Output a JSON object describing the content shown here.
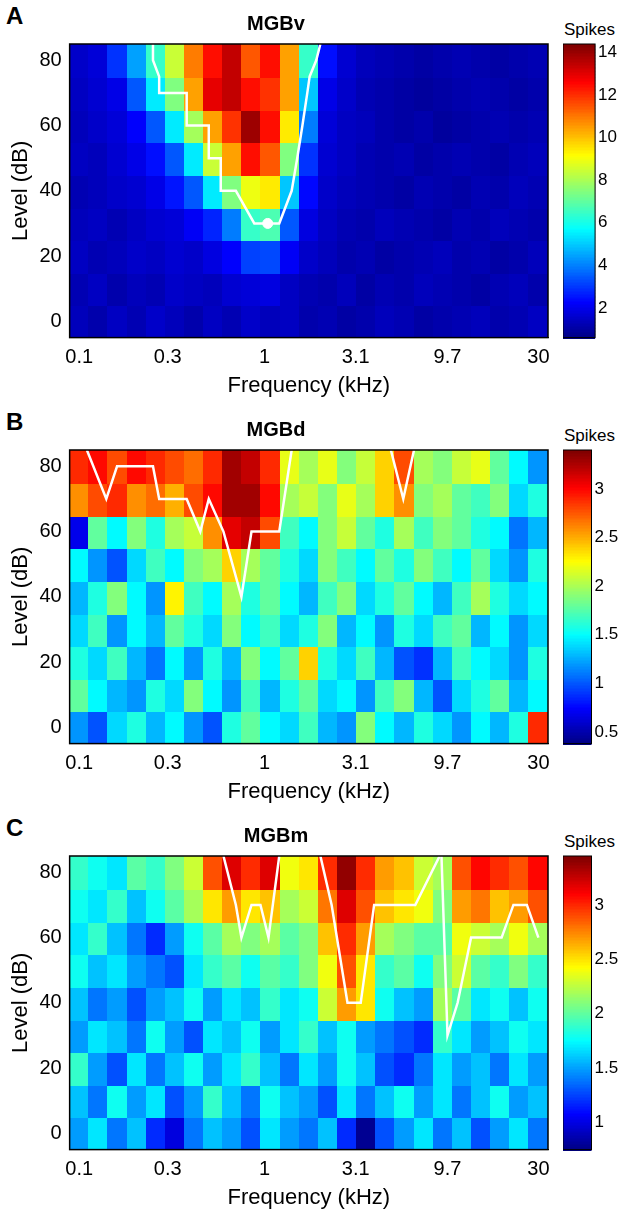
{
  "chart_data": [
    {
      "type": "heatmap",
      "panel": "A",
      "title": "MGBv",
      "x_label": "Frequency (kHz)",
      "y_label": "Level (dB)",
      "log": "x",
      "grid": false,
      "x": [
        0.1,
        0.1268,
        0.1609,
        0.204,
        0.2587,
        0.3282,
        0.4162,
        0.5279,
        0.6695,
        0.8491,
        1.077,
        1.366,
        1.732,
        2.197,
        2.787,
        3.534,
        4.482,
        5.685,
        7.21,
        9.145,
        11.6,
        14.71,
        18.66,
        23.66,
        30
      ],
      "y": [
        0,
        10,
        20,
        30,
        40,
        50,
        60,
        70,
        80
      ],
      "xlim": [
        0.0888,
        33.8
      ],
      "xticks": [
        0.1,
        0.3,
        1,
        3.1,
        9.7,
        30
      ],
      "ylim": [
        -5,
        85
      ],
      "yticks": [
        0,
        20,
        40,
        60,
        80
      ],
      "cells": [
        [
          1.4,
          1.2,
          1.5,
          1.3,
          1.6,
          1.4,
          1.2,
          1.5,
          1.3,
          1.6,
          1.4,
          1.5,
          1.2,
          1.3,
          1.1,
          1.2,
          1.4,
          1.3,
          1.1,
          1.2,
          1.3,
          1.4,
          1.2,
          1.3,
          1.5
        ],
        [
          1.3,
          1.5,
          1.2,
          1.4,
          1.3,
          1.6,
          1.5,
          1.4,
          1.7,
          1.8,
          1.9,
          1.5,
          1.3,
          1.2,
          1.4,
          1.1,
          1.3,
          1.2,
          1.4,
          1.3,
          1.2,
          1.1,
          1.3,
          1.4,
          1.2
        ],
        [
          1.5,
          1.3,
          1.4,
          1.6,
          1.5,
          1.7,
          1.6,
          1.9,
          2.3,
          3.2,
          3.3,
          2.2,
          1.6,
          1.4,
          1.2,
          1.3,
          1.1,
          1.2,
          1.3,
          1.4,
          1.2,
          1.3,
          1.1,
          1.2,
          1.4
        ],
        [
          1.4,
          1.5,
          1.3,
          1.5,
          1.7,
          1.8,
          2.2,
          2.8,
          4.0,
          6.5,
          6.8,
          3.5,
          1.9,
          1.5,
          1.3,
          1.2,
          1.4,
          1.3,
          1.2,
          1.1,
          1.3,
          1.2,
          1.4,
          1.3,
          1.2
        ],
        [
          1.3,
          1.4,
          1.6,
          1.7,
          2.0,
          2.6,
          3.5,
          5.5,
          7.5,
          9.0,
          9.5,
          5.0,
          2.4,
          1.6,
          1.4,
          1.3,
          1.2,
          1.1,
          1.3,
          1.2,
          1.1,
          1.3,
          1.2,
          1.4,
          1.3
        ],
        [
          1.5,
          1.4,
          1.7,
          2.0,
          2.5,
          3.5,
          5.5,
          8.5,
          10.5,
          12.5,
          11.5,
          7.5,
          3.0,
          1.7,
          1.5,
          1.3,
          1.2,
          1.3,
          1.1,
          1.2,
          1.3,
          1.2,
          1.1,
          1.3,
          1.4
        ],
        [
          1.4,
          1.6,
          1.8,
          2.3,
          3.5,
          5.5,
          8.0,
          10.5,
          12.0,
          14.0,
          12.5,
          9.5,
          4.0,
          1.8,
          1.5,
          1.4,
          1.2,
          1.1,
          1.2,
          1.0,
          1.1,
          1.2,
          1.3,
          1.2,
          1.3
        ],
        [
          1.5,
          1.7,
          2.0,
          3.5,
          5.5,
          7.5,
          10.5,
          13.0,
          13.5,
          12.5,
          12.0,
          10.5,
          5.0,
          2.0,
          1.6,
          1.3,
          1.2,
          1.1,
          1.0,
          1.1,
          1.2,
          1.3,
          1.2,
          1.1,
          1.2
        ],
        [
          1.6,
          1.8,
          3.0,
          4.5,
          6.5,
          8.5,
          11.0,
          12.5,
          13.5,
          11.5,
          12.5,
          10.5,
          6.5,
          2.5,
          1.7,
          1.4,
          1.3,
          1.2,
          1.1,
          1.2,
          1.3,
          1.2,
          1.1,
          1.2,
          1.3
        ]
      ],
      "colorbar_label": "Spikes",
      "colorbar_lim": [
        0.6,
        14.4
      ],
      "colorbar_ticks": [
        2,
        4,
        6,
        8,
        10,
        12,
        14
      ],
      "contour": {
        "color": "#ffffff",
        "line_style": "solid",
        "segments": [
          {
            "x": [
              0.25,
              0.25,
              0.27,
              0.27,
              0.38,
              0.38,
              0.5,
              0.5,
              0.58,
              0.58,
              0.7,
              0.88,
              1.2,
              1.4,
              1.5,
              1.6,
              1.7,
              1.75,
              1.9,
              2.0
            ],
            "y": [
              85,
              80,
              75,
              70,
              70,
              60,
              60,
              50,
              50,
              40,
              40,
              30,
              30,
              40,
              50,
              60,
              70,
              75,
              80,
              85
            ]
          }
        ]
      },
      "cf": {
        "x": 1.04,
        "y": 30,
        "color": "#ffffff",
        "marker": "circle"
      }
    },
    {
      "type": "heatmap",
      "panel": "B",
      "title": "MGBd",
      "x_label": "Frequency (kHz)",
      "y_label": "Level (dB)",
      "log": "x",
      "grid": false,
      "x": [
        0.1,
        0.1268,
        0.1609,
        0.204,
        0.2587,
        0.3282,
        0.4162,
        0.5279,
        0.6695,
        0.8491,
        1.077,
        1.366,
        1.732,
        2.197,
        2.787,
        3.534,
        4.482,
        5.685,
        7.21,
        9.145,
        11.6,
        14.71,
        18.66,
        23.66,
        30
      ],
      "y": [
        0,
        10,
        20,
        30,
        40,
        50,
        60,
        70,
        80
      ],
      "xlim": [
        0.0888,
        33.8
      ],
      "xticks": [
        0.1,
        0.3,
        1,
        3.1,
        9.7,
        30
      ],
      "ylim": [
        -5,
        85
      ],
      "yticks": [
        0,
        20,
        40,
        60,
        80
      ],
      "cells": [
        [
          1.2,
          1.0,
          1.4,
          1.6,
          1.3,
          1.5,
          1.2,
          1.0,
          1.6,
          1.8,
          1.5,
          1.4,
          1.7,
          1.3,
          1.2,
          1.9,
          1.5,
          1.3,
          1.6,
          1.4,
          1.2,
          1.5,
          1.3,
          1.6,
          2.9
        ],
        [
          1.8,
          1.5,
          1.3,
          1.2,
          1.6,
          1.4,
          1.9,
          1.5,
          1.2,
          1.7,
          1.3,
          1.6,
          1.8,
          1.4,
          1.5,
          1.2,
          1.7,
          1.9,
          1.3,
          1.0,
          1.4,
          1.6,
          1.8,
          1.3,
          1.5
        ],
        [
          1.6,
          1.4,
          1.7,
          1.3,
          1.1,
          1.5,
          1.2,
          1.6,
          1.3,
          1.9,
          1.5,
          1.8,
          2.4,
          1.6,
          1.4,
          1.7,
          1.3,
          1.0,
          0.9,
          1.3,
          1.7,
          1.5,
          1.4,
          1.2,
          1.6
        ],
        [
          1.4,
          1.7,
          1.2,
          1.5,
          1.3,
          1.8,
          1.6,
          1.4,
          1.9,
          1.5,
          1.7,
          1.4,
          1.6,
          1.9,
          1.3,
          1.5,
          1.2,
          1.6,
          1.4,
          1.7,
          1.8,
          1.3,
          1.5,
          1.2,
          1.4
        ],
        [
          1.3,
          1.6,
          1.9,
          1.5,
          1.2,
          2.3,
          1.7,
          1.5,
          2.0,
          1.6,
          1.8,
          1.5,
          1.3,
          1.7,
          1.9,
          1.4,
          1.6,
          1.8,
          1.5,
          1.3,
          1.7,
          2.0,
          1.6,
          1.4,
          1.5
        ],
        [
          1.5,
          1.2,
          1.0,
          1.4,
          1.7,
          1.5,
          1.9,
          2.0,
          2.4,
          2.0,
          1.8,
          1.6,
          1.4,
          1.9,
          1.7,
          1.5,
          1.8,
          1.6,
          1.9,
          1.7,
          1.5,
          1.8,
          1.4,
          1.2,
          1.6
        ],
        [
          0.7,
          1.8,
          1.5,
          1.9,
          1.6,
          2.0,
          2.1,
          2.6,
          3.1,
          3.2,
          2.8,
          1.7,
          1.5,
          1.9,
          2.1,
          1.8,
          1.6,
          2.0,
          1.7,
          1.9,
          1.8,
          1.6,
          1.5,
          1.1,
          1.3
        ],
        [
          2.6,
          2.8,
          2.9,
          2.6,
          2.7,
          2.5,
          2.8,
          3.0,
          3.3,
          3.3,
          3.0,
          2.0,
          2.1,
          1.9,
          2.2,
          2.0,
          2.4,
          2.6,
          1.9,
          2.0,
          1.8,
          1.7,
          1.9,
          1.4,
          1.6
        ],
        [
          2.9,
          3.0,
          2.8,
          3.0,
          2.9,
          2.8,
          2.7,
          2.9,
          3.3,
          3.2,
          2.9,
          2.2,
          2.0,
          2.2,
          1.9,
          2.1,
          2.4,
          2.8,
          2.0,
          1.9,
          2.1,
          2.2,
          1.8,
          1.5,
          1.2
        ]
      ],
      "colorbar_label": "Spikes",
      "colorbar_lim": [
        0.38,
        3.4
      ],
      "colorbar_ticks": [
        0.5,
        1,
        1.5,
        2,
        2.5,
        3
      ],
      "contour": {
        "color": "#ffffff",
        "line_style": "solid",
        "segments": [
          {
            "x": [
              0.11,
              0.14,
              0.16,
              0.25,
              0.27,
              0.38,
              0.45,
              0.5,
              0.6,
              0.75,
              0.85,
              1.2,
              1.4
            ],
            "y": [
              85,
              70,
              80,
              80,
              70,
              70,
              60,
              70,
              60,
              40,
              60,
              60,
              85
            ]
          },
          {
            "x": [
              4.8,
              5.6,
              6.4
            ],
            "y": [
              85,
              70,
              85
            ]
          }
        ]
      }
    },
    {
      "type": "heatmap",
      "panel": "C",
      "title": "MGBm",
      "x_label": "Frequency (kHz)",
      "y_label": "Level (dB)",
      "log": "x",
      "grid": false,
      "x": [
        0.1,
        0.1268,
        0.1609,
        0.204,
        0.2587,
        0.3282,
        0.4162,
        0.5279,
        0.6695,
        0.8491,
        1.077,
        1.366,
        1.732,
        2.197,
        2.787,
        3.534,
        4.482,
        5.685,
        7.21,
        9.145,
        11.6,
        14.71,
        18.66,
        23.66,
        30
      ],
      "y": [
        0,
        10,
        20,
        30,
        40,
        50,
        60,
        70,
        80
      ],
      "xlim": [
        0.0888,
        33.8
      ],
      "xticks": [
        0.1,
        0.3,
        1,
        3.1,
        9.7,
        30
      ],
      "ylim": [
        -5,
        85
      ],
      "yticks": [
        0,
        20,
        40,
        60,
        80
      ],
      "cells": [
        [
          1.5,
          1.7,
          1.4,
          1.6,
          1.2,
          1.0,
          1.4,
          1.6,
          1.5,
          1.3,
          1.7,
          1.5,
          1.4,
          1.6,
          1.2,
          0.8,
          1.3,
          1.5,
          1.7,
          1.4,
          1.6,
          1.3,
          1.5,
          1.7,
          1.4
        ],
        [
          1.6,
          1.4,
          1.8,
          1.5,
          1.7,
          1.3,
          1.5,
          1.9,
          1.6,
          1.4,
          1.8,
          1.6,
          1.5,
          1.3,
          1.7,
          1.4,
          1.6,
          1.8,
          1.5,
          1.7,
          1.4,
          1.6,
          1.8,
          1.5,
          1.6
        ],
        [
          1.9,
          1.5,
          1.3,
          1.7,
          1.4,
          1.6,
          1.8,
          1.5,
          1.7,
          1.9,
          1.6,
          1.4,
          1.7,
          1.5,
          1.8,
          1.6,
          1.3,
          1.2,
          1.4,
          1.7,
          1.5,
          1.6,
          1.4,
          1.7,
          1.5
        ],
        [
          1.5,
          1.7,
          1.6,
          1.4,
          1.8,
          1.5,
          1.3,
          1.7,
          1.6,
          1.8,
          1.5,
          1.7,
          1.9,
          1.6,
          1.8,
          1.5,
          1.4,
          1.3,
          1.2,
          1.9,
          1.7,
          1.5,
          1.6,
          1.8,
          1.7
        ],
        [
          1.6,
          1.4,
          1.5,
          1.3,
          1.5,
          1.6,
          1.8,
          1.5,
          1.7,
          1.6,
          1.9,
          1.7,
          1.8,
          2.3,
          2.7,
          2.5,
          1.8,
          1.6,
          1.5,
          2.2,
          2.0,
          1.7,
          1.8,
          1.6,
          1.8
        ],
        [
          1.8,
          1.6,
          1.7,
          1.5,
          1.4,
          1.3,
          1.7,
          1.9,
          2.0,
          1.8,
          2.0,
          1.9,
          2.1,
          2.4,
          2.9,
          2.5,
          1.9,
          2.0,
          1.8,
          2.1,
          2.3,
          2.0,
          1.9,
          2.1,
          1.9
        ],
        [
          1.7,
          1.9,
          1.6,
          1.4,
          1.2,
          1.5,
          1.8,
          2.0,
          2.2,
          2.1,
          2.2,
          2.0,
          2.1,
          2.6,
          3.0,
          2.7,
          2.2,
          2.1,
          2.0,
          2.0,
          2.4,
          2.3,
          2.2,
          2.4,
          2.2
        ],
        [
          1.8,
          1.7,
          1.9,
          1.6,
          1.8,
          2.0,
          2.2,
          2.5,
          2.7,
          2.5,
          2.6,
          2.2,
          2.3,
          2.8,
          3.2,
          2.9,
          2.6,
          2.5,
          2.4,
          2.1,
          2.7,
          2.8,
          2.6,
          2.7,
          2.9
        ],
        [
          1.9,
          1.8,
          1.7,
          2.0,
          1.9,
          2.1,
          2.3,
          2.9,
          3.2,
          3.0,
          3.2,
          2.4,
          2.5,
          3.0,
          3.4,
          3.0,
          2.7,
          2.6,
          2.3,
          2.2,
          2.9,
          3.1,
          3.0,
          2.9,
          3.1
        ]
      ],
      "colorbar_label": "Spikes",
      "colorbar_lim": [
        0.75,
        3.45
      ],
      "colorbar_ticks": [
        1,
        1.5,
        2,
        2.5,
        3
      ],
      "contour": {
        "color": "#ffffff",
        "line_style": "solid",
        "segments": [
          {
            "x": [
              0.6,
              0.7,
              0.75,
              0.85,
              0.95,
              1.05,
              1.2
            ],
            "y": [
              85,
              70,
              60,
              70,
              70,
              60,
              85
            ]
          },
          {
            "x": [
              2.0,
              2.3,
              2.8,
              3.3,
              3.9,
              6.5,
              8.8
            ],
            "y": [
              85,
              70,
              40,
              40,
              70,
              70,
              85
            ]
          },
          {
            "x": [
              9.0,
              9.7,
              11,
              13,
              19,
              22,
              26,
              30
            ],
            "y": [
              85,
              30,
              40,
              60,
              60,
              70,
              70,
              60
            ]
          }
        ]
      }
    }
  ]
}
